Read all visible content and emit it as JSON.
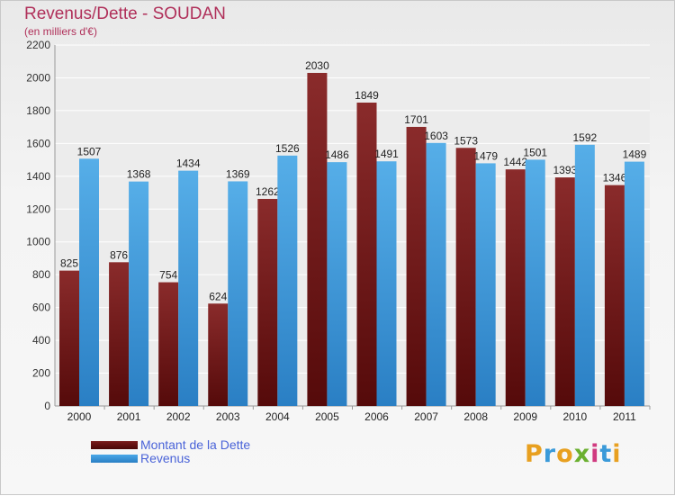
{
  "chart_data": {
    "type": "bar",
    "title": "Revenus/Dette - SOUDAN",
    "subtitle": "(en milliers d'€)",
    "categories": [
      "2000",
      "2001",
      "2002",
      "2003",
      "2004",
      "2005",
      "2006",
      "2007",
      "2008",
      "2009",
      "2010",
      "2011"
    ],
    "series": [
      {
        "name": "Montant de la Dette",
        "color": "#7a1b1b",
        "values": [
          825,
          876,
          754,
          624,
          1262,
          2030,
          1849,
          1701,
          1573,
          1442,
          1393,
          1346
        ]
      },
      {
        "name": "Revenus",
        "color": "#3a96dc",
        "values": [
          1507,
          1368,
          1434,
          1369,
          1526,
          1486,
          1491,
          1603,
          1479,
          1501,
          1592,
          1489
        ]
      }
    ],
    "ylim": [
      0,
      2200
    ],
    "yticks": [
      "0",
      "200",
      "400",
      "600",
      "800",
      "1000",
      "1200",
      "1400",
      "1600",
      "1800",
      "2000",
      "2200"
    ],
    "grid": true,
    "legend_position": "bottom-left"
  },
  "logo": {
    "letters": [
      "P",
      "r",
      "o",
      "x",
      "i",
      "t",
      "i"
    ],
    "colors": [
      "#e8a020",
      "#3a9ad9",
      "#e8a020",
      "#6bb030",
      "#d03a80",
      "#3a9ad9",
      "#e8a020"
    ]
  }
}
